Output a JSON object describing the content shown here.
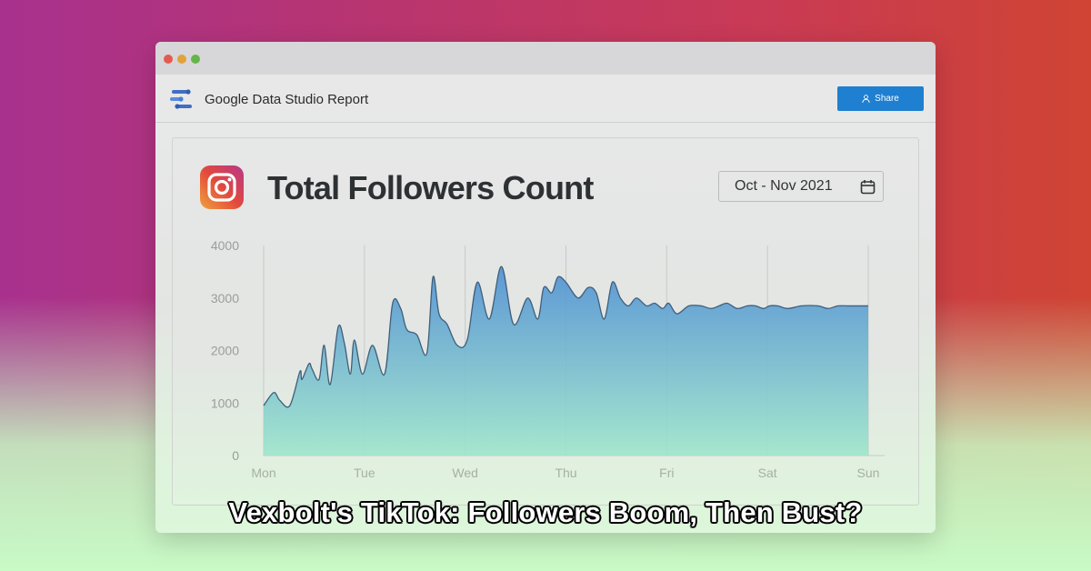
{
  "window": {
    "app_name": "Google Data Studio Report",
    "share_label": "Share"
  },
  "report": {
    "title": "Total Followers Count",
    "date_range": "Oct - Nov 2021"
  },
  "caption": "Vexbolt's TikTok: Followers Boom, Then Bust?",
  "colors": {
    "share_button": "#1f7fd0",
    "line": "#3f5f7a",
    "fill_top": "#4e8fd3",
    "fill_bottom": "#9ee6cc"
  },
  "icons": [
    "logo-icon",
    "user-icon",
    "instagram-icon",
    "calendar-icon"
  ],
  "chart_data": {
    "type": "area",
    "title": "Total Followers Count",
    "categories": [
      "Mon",
      "Tue",
      "Wed",
      "Thu",
      "Fri",
      "Sat",
      "Sun"
    ],
    "yticks": [
      0,
      1000,
      2000,
      3000,
      4000
    ],
    "ylim": [
      0,
      4000
    ],
    "xlim": [
      0,
      6
    ],
    "grid": "vertical",
    "series": [
      {
        "x": [
          0,
          0.1,
          0.16,
          0.26,
          0.36,
          0.38,
          0.45,
          0.48,
          0.55,
          0.6,
          0.66,
          0.74,
          0.8,
          0.86,
          0.9,
          0.98,
          1.08,
          1.2,
          1.28,
          1.36,
          1.42,
          1.52,
          1.62,
          1.68,
          1.74,
          1.82,
          1.92,
          2.02,
          2.12,
          2.24,
          2.36,
          2.48,
          2.62,
          2.72,
          2.78,
          2.86,
          2.92,
          3.0,
          3.12,
          3.22,
          3.3,
          3.38,
          3.46,
          3.54,
          3.62,
          3.7,
          3.8,
          3.88,
          3.96,
          4.02,
          4.1,
          4.22,
          4.34,
          4.44,
          4.52,
          4.6,
          4.7,
          4.8,
          4.88,
          4.96,
          5.02,
          5.1,
          5.2,
          5.34,
          5.5,
          5.6,
          5.7,
          5.8,
          6.0
        ],
        "y": [
          950,
          1200,
          1050,
          950,
          1600,
          1450,
          1750,
          1650,
          1450,
          2100,
          1350,
          2450,
          2150,
          1550,
          2200,
          1550,
          2100,
          1550,
          2900,
          2800,
          2400,
          2300,
          1950,
          3400,
          2700,
          2500,
          2100,
          2200,
          3300,
          2600,
          3600,
          2500,
          3000,
          2600,
          3200,
          3100,
          3400,
          3300,
          3000,
          3200,
          3100,
          2600,
          3300,
          3000,
          2850,
          3000,
          2850,
          2900,
          2800,
          2900,
          2700,
          2850,
          2850,
          2800,
          2850,
          2900,
          2800,
          2850,
          2850,
          2800,
          2850,
          2850,
          2800,
          2850,
          2850,
          2800,
          2850,
          2850,
          2850
        ]
      }
    ]
  }
}
